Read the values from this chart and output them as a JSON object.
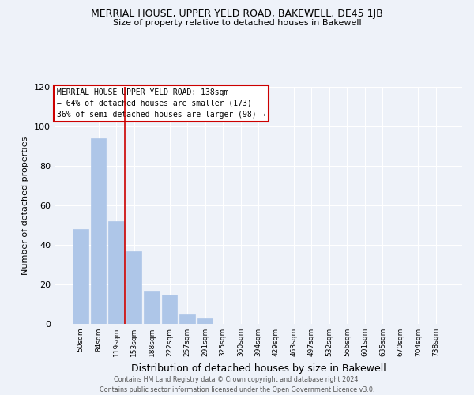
{
  "title": "MERRIAL HOUSE, UPPER YELD ROAD, BAKEWELL, DE45 1JB",
  "subtitle": "Size of property relative to detached houses in Bakewell",
  "xlabel": "Distribution of detached houses by size in Bakewell",
  "ylabel": "Number of detached properties",
  "bar_labels": [
    "50sqm",
    "84sqm",
    "119sqm",
    "153sqm",
    "188sqm",
    "222sqm",
    "257sqm",
    "291sqm",
    "325sqm",
    "360sqm",
    "394sqm",
    "429sqm",
    "463sqm",
    "497sqm",
    "532sqm",
    "566sqm",
    "601sqm",
    "635sqm",
    "670sqm",
    "704sqm",
    "738sqm"
  ],
  "bar_heights": [
    48,
    94,
    52,
    37,
    17,
    15,
    5,
    3,
    0,
    0,
    0,
    0,
    0,
    0,
    0,
    0,
    0,
    0,
    0,
    0,
    0
  ],
  "bar_color": "#aec6e8",
  "bar_edge_color": "#aec6e8",
  "vline_x": 2.5,
  "vline_color": "#cc0000",
  "ylim": [
    0,
    120
  ],
  "yticks": [
    0,
    20,
    40,
    60,
    80,
    100,
    120
  ],
  "annotation_lines": [
    "MERRIAL HOUSE UPPER YELD ROAD: 138sqm",
    "← 64% of detached houses are smaller (173)",
    "36% of semi-detached houses are larger (98) →"
  ],
  "footer_line1": "Contains HM Land Registry data © Crown copyright and database right 2024.",
  "footer_line2": "Contains public sector information licensed under the Open Government Licence v3.0.",
  "bg_color": "#eef2f9",
  "grid_color": "#ffffff"
}
